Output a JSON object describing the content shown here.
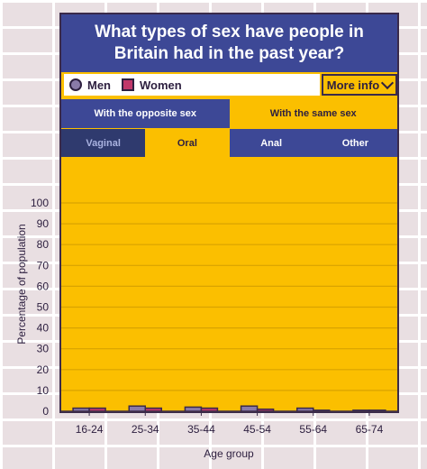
{
  "header": {
    "title": "What types of sex have people in Britain had in the past year?"
  },
  "legend": {
    "men": "Men",
    "women": "Women",
    "more_info": "More info"
  },
  "tabs_partner": [
    {
      "label": "With the opposite sex",
      "active": true
    },
    {
      "label": "With the same sex",
      "active": false
    }
  ],
  "tabs_type": [
    {
      "label": "Vaginal",
      "active": false
    },
    {
      "label": "Oral",
      "active": true
    },
    {
      "label": "Anal",
      "active": false
    },
    {
      "label": "Other",
      "active": false
    }
  ],
  "colors": {
    "men": "#8a7aa8",
    "women": "#c0386a",
    "panel": "#fbbf00",
    "header": "#3d4896"
  },
  "chart_data": {
    "type": "bar",
    "xlabel": "Age group",
    "ylabel": "Percentage of population",
    "ylim": [
      0,
      100
    ],
    "yticks": [
      0,
      10,
      20,
      30,
      40,
      50,
      60,
      70,
      80,
      90,
      100
    ],
    "categories": [
      "16-24",
      "25-34",
      "35-44",
      "45-54",
      "55-64",
      "65-74"
    ],
    "series": [
      {
        "name": "Men",
        "values": [
          1.5,
          2.5,
          2,
          2.5,
          1.5,
          0.5
        ]
      },
      {
        "name": "Women",
        "values": [
          1.5,
          1.5,
          1.5,
          1,
          0.5,
          0.5
        ]
      }
    ],
    "grid": true
  }
}
